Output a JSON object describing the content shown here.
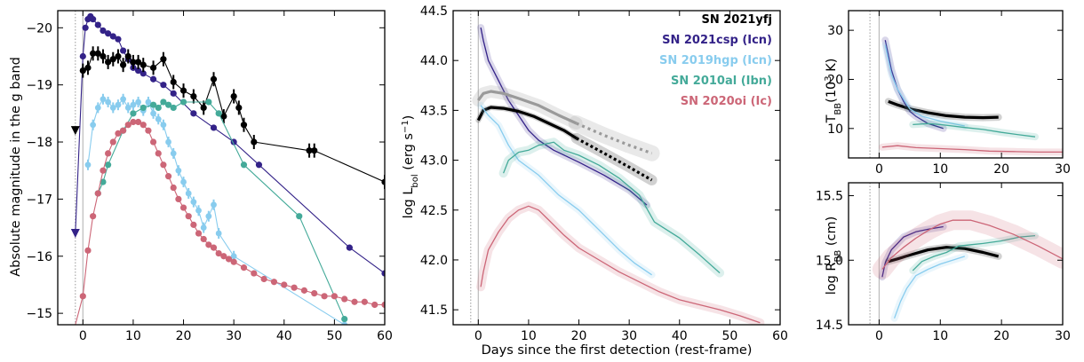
{
  "figure": {
    "shared_xlabel": "Days since the first detection (rest-frame)",
    "panel_a_ylabel": "Absolute magnitude in the g band",
    "panel_b_ylabel": {
      "main": "log L",
      "sub": "bol",
      "unit": " (erg s",
      "sup": "−1",
      "close": ")"
    },
    "panel_c_ylabel": {
      "main": "T",
      "sub": "BB",
      "unit": "(10",
      "sup": "3",
      "close": " K)"
    },
    "panel_d_ylabel": {
      "main": "log R",
      "sub": "BB",
      "unit": " (cm)"
    }
  },
  "colors": {
    "SN 2021yfj": "#000000",
    "SN 2021csp": "#332288",
    "SN 2019hgp": "#88CCEE",
    "SN 2010al": "#44AA99",
    "SN 2020oi": "#CC6677"
  },
  "legend": [
    {
      "label": "SN 2021yfj",
      "color": "#000000"
    },
    {
      "label": "SN 2021csp (Icn)",
      "color": "#332288"
    },
    {
      "label": "SN 2019hgp (Icn)",
      "color": "#88CCEE"
    },
    {
      "label": "SN 2010al (Ibn)",
      "color": "#44AA99"
    },
    {
      "label": "SN 2020oi (Ic)",
      "color": "#CC6677"
    }
  ],
  "chart_data": [
    {
      "type": "line",
      "panel": "g-band light curves",
      "xlabel": "",
      "ylabel": "Absolute magnitude in the g band",
      "xlim": [
        -5,
        60
      ],
      "ylim": [
        -14.8,
        -20.3
      ],
      "y_inverted": true,
      "xticks": [
        0,
        10,
        20,
        30,
        40,
        50,
        60
      ],
      "yticks": [
        -15,
        -16,
        -17,
        -18,
        -19,
        -20
      ],
      "series": [
        {
          "name": "SN 2021csp",
          "color": "#332288",
          "x": [
            -1.5,
            0,
            0.5,
            1,
            1.5,
            2,
            3,
            4,
            5,
            6,
            7,
            8,
            9,
            10,
            11,
            12,
            14,
            16,
            18,
            22,
            26,
            30,
            35,
            53,
            60
          ],
          "y": [
            -16.4,
            -19.5,
            -20.0,
            -20.15,
            -20.2,
            -20.15,
            -20.05,
            -19.95,
            -19.9,
            -19.85,
            -19.8,
            -19.6,
            -19.45,
            -19.3,
            -19.25,
            -19.2,
            -19.1,
            -19.0,
            -18.85,
            -18.5,
            -18.25,
            -18.0,
            -17.6,
            -16.15,
            -15.7
          ]
        },
        {
          "name": "SN 2021yfj",
          "color": "#000000",
          "x": [
            0,
            1,
            2,
            3,
            4,
            5,
            6,
            7,
            8,
            9,
            10,
            11,
            12,
            14,
            16,
            18,
            20,
            22,
            24,
            26,
            28,
            30,
            31,
            32,
            34,
            45,
            46,
            60
          ],
          "y": [
            -19.25,
            -19.3,
            -19.55,
            -19.55,
            -19.5,
            -19.4,
            -19.45,
            -19.5,
            -19.35,
            -19.5,
            -19.4,
            -19.4,
            -19.35,
            -19.3,
            -19.45,
            -19.05,
            -18.9,
            -18.8,
            -18.6,
            -19.1,
            -18.45,
            -18.8,
            -18.6,
            -18.3,
            -18.0,
            -17.85,
            -17.85,
            -17.3
          ]
        },
        {
          "name": "SN 2019hgp",
          "color": "#88CCEE",
          "x": [
            1,
            2,
            3,
            4,
            5,
            6,
            7,
            8,
            9,
            10,
            11,
            12,
            13,
            14,
            15,
            16,
            17,
            18,
            19,
            20,
            21,
            22,
            23,
            24,
            25,
            26,
            27,
            30,
            52
          ],
          "y": [
            -17.6,
            -18.3,
            -18.6,
            -18.75,
            -18.7,
            -18.6,
            -18.65,
            -18.75,
            -18.6,
            -18.65,
            -18.7,
            -18.55,
            -18.7,
            -18.5,
            -18.4,
            -18.3,
            -18.0,
            -17.8,
            -17.5,
            -17.3,
            -17.1,
            -16.95,
            -16.8,
            -16.5,
            -16.7,
            -16.9,
            -16.4,
            -16.0,
            -14.8
          ]
        },
        {
          "name": "SN 2010al",
          "color": "#44AA99",
          "x": [
            3,
            4,
            5,
            8,
            10,
            12,
            14,
            15,
            16,
            17,
            18,
            20,
            25,
            27,
            32,
            43,
            52
          ],
          "y": [
            -17.1,
            -17.3,
            -17.6,
            -18.2,
            -18.5,
            -18.6,
            -18.65,
            -18.6,
            -18.7,
            -18.65,
            -18.6,
            -18.7,
            -18.7,
            -18.5,
            -17.6,
            -16.7,
            -14.9
          ]
        },
        {
          "name": "SN 2020oi",
          "color": "#CC6677",
          "x": [
            -1.5,
            0,
            1,
            2,
            3,
            4,
            5,
            6,
            7,
            8,
            9,
            10,
            11,
            12,
            13,
            14,
            15,
            16,
            17,
            18,
            19,
            20,
            21,
            22,
            23,
            24,
            25,
            26,
            27,
            28,
            29,
            30,
            32,
            34,
            36,
            38,
            40,
            42,
            44,
            46,
            48,
            50,
            52,
            54,
            56,
            58,
            60
          ],
          "y": [
            -14.8,
            -15.3,
            -16.1,
            -16.7,
            -17.1,
            -17.5,
            -17.8,
            -18.0,
            -18.15,
            -18.2,
            -18.3,
            -18.35,
            -18.35,
            -18.3,
            -18.2,
            -18.0,
            -17.8,
            -17.6,
            -17.4,
            -17.2,
            -17.0,
            -16.85,
            -16.7,
            -16.55,
            -16.4,
            -16.3,
            -16.2,
            -16.15,
            -16.05,
            -16.0,
            -15.95,
            -15.9,
            -15.8,
            -15.7,
            -15.6,
            -15.55,
            -15.5,
            -15.45,
            -15.4,
            -15.35,
            -15.3,
            -15.3,
            -15.25,
            -15.2,
            -15.2,
            -15.15,
            -15.15
          ]
        }
      ],
      "upper_limits": [
        {
          "series": "SN 2021yfj",
          "x": -1.5,
          "y": -18.2
        },
        {
          "series": "SN 2021csp",
          "x": -1.5,
          "y": -16.4
        }
      ]
    },
    {
      "type": "line",
      "panel": "bolometric luminosity",
      "xlabel": "Days since the first detection (rest-frame)",
      "ylabel": "log L_bol (erg s^-1)",
      "xlim": [
        -5,
        60
      ],
      "ylim": [
        41.35,
        44.5
      ],
      "xticks": [
        0,
        10,
        20,
        30,
        40,
        50,
        60
      ],
      "yticks": [
        41.5,
        42.0,
        42.5,
        43.0,
        43.5,
        44.0,
        44.5
      ],
      "series": [
        {
          "name": "SN 2021csp",
          "color": "#332288",
          "x": [
            0.5,
            1,
            2,
            4,
            6,
            8,
            10,
            12,
            15,
            20,
            25,
            30,
            33.5
          ],
          "y": [
            44.33,
            44.2,
            44.0,
            43.8,
            43.6,
            43.45,
            43.3,
            43.2,
            43.1,
            42.98,
            42.85,
            42.7,
            42.55
          ]
        },
        {
          "name": "SN 2021yfj",
          "color": "#000000",
          "x": [
            0,
            1,
            2.5,
            5,
            8,
            11,
            14,
            17,
            19.5
          ],
          "y": [
            43.4,
            43.5,
            43.53,
            43.52,
            43.49,
            43.44,
            43.37,
            43.3,
            43.22
          ]
        },
        {
          "name": "SN 2021yfj (extrapolated)",
          "color": "#000000",
          "x": [
            19.5,
            25,
            30,
            34.5
          ],
          "y": [
            43.22,
            43.07,
            42.93,
            42.8
          ]
        },
        {
          "name": "SN 2021yfj (alt)",
          "color": "#9a9a9a",
          "x": [
            0,
            1,
            2.5,
            5,
            8,
            12,
            16,
            19.5
          ],
          "y": [
            43.6,
            43.67,
            43.69,
            43.67,
            43.62,
            43.55,
            43.45,
            43.37
          ]
        },
        {
          "name": "SN 2021yfj (alt, extrapolated)",
          "color": "#9a9a9a",
          "x": [
            19.5,
            25,
            30,
            34.5
          ],
          "y": [
            43.37,
            43.25,
            43.15,
            43.07
          ]
        },
        {
          "name": "SN 2019hgp",
          "color": "#88CCEE",
          "x": [
            0.5,
            2,
            4,
            6,
            8,
            12,
            16,
            20,
            24,
            28,
            31,
            34.5
          ],
          "y": [
            43.55,
            43.45,
            43.35,
            43.15,
            43.0,
            42.85,
            42.65,
            42.5,
            42.3,
            42.1,
            41.97,
            41.85
          ]
        },
        {
          "name": "SN 2010al",
          "color": "#44AA99",
          "x": [
            5,
            6,
            8,
            10,
            12,
            14,
            15,
            17,
            20,
            24,
            28,
            32,
            35,
            40,
            44,
            48
          ],
          "y": [
            42.87,
            43.0,
            43.08,
            43.1,
            43.15,
            43.17,
            43.18,
            43.1,
            43.05,
            42.95,
            42.82,
            42.65,
            42.38,
            42.22,
            42.05,
            41.87
          ]
        },
        {
          "name": "SN 2020oi",
          "color": "#CC6677",
          "x": [
            0.5,
            1,
            2,
            4,
            6,
            8,
            10,
            12,
            14,
            17,
            20,
            24,
            28,
            32,
            36,
            40,
            44,
            48,
            52,
            56
          ],
          "y": [
            41.73,
            41.88,
            42.1,
            42.28,
            42.42,
            42.5,
            42.54,
            42.5,
            42.4,
            42.25,
            42.12,
            42.0,
            41.88,
            41.78,
            41.68,
            41.6,
            41.55,
            41.5,
            41.44,
            41.37
          ]
        }
      ]
    },
    {
      "type": "line",
      "panel": "blackbody temperature",
      "xlabel": "",
      "ylabel": "T_BB (10^3 K)",
      "xlim": [
        -5,
        30
      ],
      "ylim": [
        4,
        34
      ],
      "xticks": [
        0,
        10,
        20,
        30
      ],
      "yticks": [
        10,
        20,
        30
      ],
      "series": [
        {
          "name": "SN 2021csp",
          "color": "#332288",
          "x": [
            1,
            1.5,
            2,
            3,
            4,
            5,
            6,
            8,
            10.5
          ],
          "y": [
            28,
            25,
            22,
            18,
            15.5,
            13.5,
            12.5,
            11,
            10
          ]
        },
        {
          "name": "SN 2021yfj",
          "color": "#000000",
          "x": [
            1.5,
            3,
            5,
            8,
            11,
            14,
            17,
            19.5
          ],
          "y": [
            15.5,
            14.8,
            14,
            13.2,
            12.6,
            12.3,
            12.2,
            12.3
          ]
        },
        {
          "name": "SN 2019hgp",
          "color": "#88CCEE",
          "x": [
            1,
            2,
            3,
            5,
            7,
            10,
            14
          ],
          "y": [
            27,
            21,
            18,
            14,
            12.5,
            11.5,
            10.5
          ]
        },
        {
          "name": "SN 2010al",
          "color": "#44AA99",
          "x": [
            5.5,
            8,
            10,
            12,
            14,
            17,
            20,
            23,
            25.5
          ],
          "y": [
            10.8,
            11.0,
            10.8,
            10.5,
            10.2,
            9.8,
            9.2,
            8.7,
            8.3
          ]
        },
        {
          "name": "SN 2020oi",
          "color": "#CC6677",
          "x": [
            0.5,
            3,
            6,
            10,
            14,
            18,
            22,
            26,
            30
          ],
          "y": [
            6.2,
            6.5,
            6.1,
            5.9,
            5.7,
            5.4,
            5.3,
            5.2,
            5.2
          ]
        }
      ]
    },
    {
      "type": "line",
      "panel": "blackbody radius",
      "xlabel": "",
      "ylabel": "log R_BB (cm)",
      "xlim": [
        -5,
        30
      ],
      "ylim": [
        14.5,
        15.6
      ],
      "xticks": [
        0,
        10,
        20,
        30
      ],
      "yticks": [
        14.5,
        15.0,
        15.5
      ],
      "series": [
        {
          "name": "SN 2021csp",
          "color": "#332288",
          "x": [
            0.5,
            1,
            2,
            3,
            4,
            6,
            8,
            10.5
          ],
          "y": [
            14.87,
            14.98,
            15.08,
            15.13,
            15.18,
            15.22,
            15.24,
            15.26
          ]
        },
        {
          "name": "SN 2021yfj",
          "color": "#000000",
          "x": [
            1.5,
            3,
            5,
            8,
            11,
            14,
            17,
            19.5
          ],
          "y": [
            14.99,
            15.01,
            15.04,
            15.08,
            15.1,
            15.09,
            15.06,
            15.03
          ]
        },
        {
          "name": "SN 2019hgp",
          "color": "#88CCEE",
          "x": [
            2.5,
            3.5,
            4.5,
            6,
            8,
            10,
            12,
            14
          ],
          "y": [
            14.55,
            14.68,
            14.78,
            14.88,
            14.93,
            14.97,
            15.0,
            15.03
          ]
        },
        {
          "name": "SN 2010al",
          "color": "#44AA99",
          "x": [
            5.5,
            7,
            9,
            11,
            13,
            15,
            17,
            20,
            23,
            25.5
          ],
          "y": [
            14.92,
            14.99,
            15.03,
            15.06,
            15.11,
            15.12,
            15.13,
            15.15,
            15.18,
            15.19
          ]
        },
        {
          "name": "SN 2020oi",
          "color": "#CC6677",
          "x": [
            0.5,
            2,
            4,
            6,
            8,
            10,
            12,
            15,
            18,
            22,
            26,
            30
          ],
          "y": [
            14.93,
            15.02,
            15.1,
            15.17,
            15.23,
            15.28,
            15.31,
            15.31,
            15.27,
            15.2,
            15.11,
            15.01
          ]
        }
      ]
    }
  ]
}
